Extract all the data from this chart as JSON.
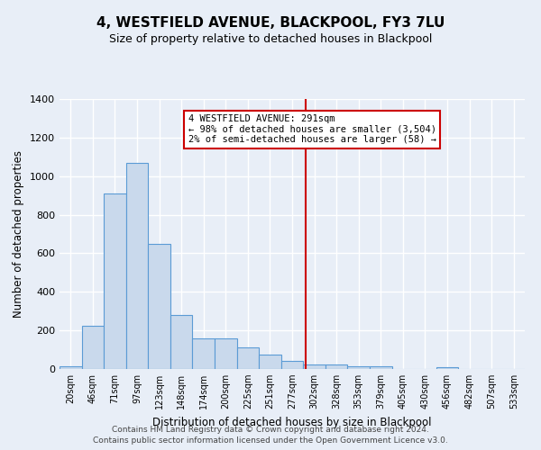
{
  "title": "4, WESTFIELD AVENUE, BLACKPOOL, FY3 7LU",
  "subtitle": "Size of property relative to detached houses in Blackpool",
  "xlabel": "Distribution of detached houses by size in Blackpool",
  "ylabel": "Number of detached properties",
  "bar_labels": [
    "20sqm",
    "46sqm",
    "71sqm",
    "97sqm",
    "123sqm",
    "148sqm",
    "174sqm",
    "200sqm",
    "225sqm",
    "251sqm",
    "277sqm",
    "302sqm",
    "328sqm",
    "353sqm",
    "379sqm",
    "405sqm",
    "430sqm",
    "456sqm",
    "482sqm",
    "507sqm",
    "533sqm"
  ],
  "bar_values": [
    15,
    225,
    910,
    1070,
    650,
    280,
    158,
    158,
    110,
    75,
    42,
    25,
    25,
    15,
    15,
    0,
    0,
    10,
    0,
    0,
    0
  ],
  "bar_color": "#c9d9ec",
  "bar_edgecolor": "#5b9bd5",
  "bg_color": "#e8eef7",
  "grid_color": "#ffffff",
  "vline_x": 10.6,
  "vline_color": "#cc0000",
  "annotation_title": "4 WESTFIELD AVENUE: 291sqm",
  "annotation_line1": "← 98% of detached houses are smaller (3,504)",
  "annotation_line2": "2% of semi-detached houses are larger (58) →",
  "annotation_box_edgecolor": "#cc0000",
  "ylim": [
    0,
    1400
  ],
  "yticks": [
    0,
    200,
    400,
    600,
    800,
    1000,
    1200,
    1400
  ],
  "footer1": "Contains HM Land Registry data © Crown copyright and database right 2024.",
  "footer2": "Contains public sector information licensed under the Open Government Licence v3.0."
}
